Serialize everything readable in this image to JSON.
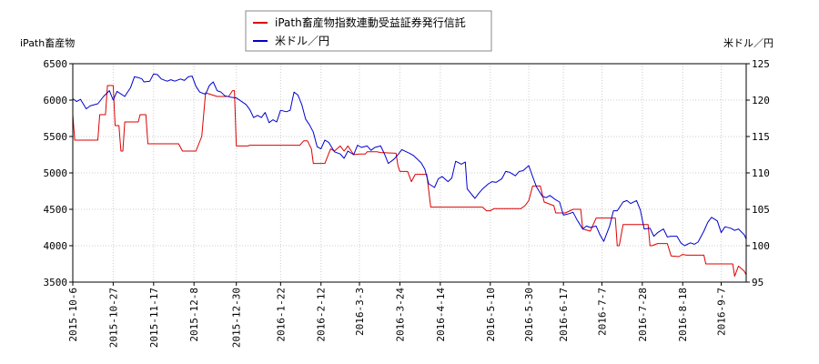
{
  "chart_data": {
    "type": "line",
    "legend": {
      "placement": "top-center",
      "items": [
        {
          "label": "iPath畜産物指数連動受益証券発行信託",
          "color": "#dd0000"
        },
        {
          "label": "米ドル／円",
          "color": "#0000cc"
        }
      ]
    },
    "left_axis_title": "iPath畜産物",
    "right_axis_title": "米ドル／円",
    "left_ylim": [
      3500,
      6500
    ],
    "left_ticks": [
      3500,
      4000,
      4500,
      5000,
      5500,
      6000,
      6500
    ],
    "right_ylim": [
      95,
      125
    ],
    "right_ticks": [
      95,
      100,
      105,
      110,
      115,
      120,
      125
    ],
    "x_range": [
      "2015-10-06",
      "2016-09-20"
    ],
    "x_ticks": [
      "2015-10-6",
      "2015-10-27",
      "2015-11-17",
      "2015-12-8",
      "2015-12-30",
      "2016-1-22",
      "2016-2-12",
      "2016-3-3",
      "2016-3-24",
      "2016-4-14",
      "2016-5-10",
      "2016-5-30",
      "2016-6-17",
      "2016-7-7",
      "2016-7-28",
      "2016-8-18",
      "2016-9-7"
    ],
    "grid": true,
    "series": [
      {
        "name": "iPath畜産物指数連動受益証券発行信託",
        "axis": "left",
        "color": "#dd0000",
        "points": [
          [
            "2015-10-06",
            5800
          ],
          [
            "2015-10-07",
            5450
          ],
          [
            "2015-10-19",
            5450
          ],
          [
            "2015-10-20",
            5800
          ],
          [
            "2015-10-23",
            5800
          ],
          [
            "2015-10-24",
            6200
          ],
          [
            "2015-10-27",
            6200
          ],
          [
            "2015-10-28",
            5650
          ],
          [
            "2015-10-30",
            5650
          ],
          [
            "2015-10-31",
            5300
          ],
          [
            "2015-11-01",
            5300
          ],
          [
            "2015-11-02",
            5700
          ],
          [
            "2015-11-09",
            5700
          ],
          [
            "2015-11-10",
            5800
          ],
          [
            "2015-11-13",
            5800
          ],
          [
            "2015-11-14",
            5400
          ],
          [
            "2015-11-30",
            5400
          ],
          [
            "2015-12-02",
            5300
          ],
          [
            "2015-12-09",
            5300
          ],
          [
            "2015-12-12",
            5500
          ],
          [
            "2015-12-14",
            6100
          ],
          [
            "2015-12-20",
            6050
          ],
          [
            "2015-12-26",
            6050
          ],
          [
            "2015-12-28",
            6130
          ],
          [
            "2015-12-29",
            6130
          ],
          [
            "2015-12-30",
            5370
          ],
          [
            "2016-01-05",
            5370
          ],
          [
            "2016-01-06",
            5380
          ],
          [
            "2016-02-01",
            5380
          ],
          [
            "2016-02-03",
            5440
          ],
          [
            "2016-02-05",
            5440
          ],
          [
            "2016-02-07",
            5330
          ],
          [
            "2016-02-08",
            5130
          ],
          [
            "2016-02-14",
            5130
          ],
          [
            "2016-02-17",
            5330
          ],
          [
            "2016-02-19",
            5300
          ],
          [
            "2016-02-22",
            5370
          ],
          [
            "2016-02-24",
            5300
          ],
          [
            "2016-02-26",
            5370
          ],
          [
            "2016-02-29",
            5250
          ],
          [
            "2016-03-03",
            5260
          ],
          [
            "2016-03-06",
            5260
          ],
          [
            "2016-03-07",
            5290
          ],
          [
            "2016-03-12",
            5290
          ],
          [
            "2016-03-14",
            5280
          ],
          [
            "2016-03-22",
            5270
          ],
          [
            "2016-03-23",
            5100
          ],
          [
            "2016-03-24",
            5020
          ],
          [
            "2016-03-28",
            5020
          ],
          [
            "2016-03-30",
            4880
          ],
          [
            "2016-04-01",
            4980
          ],
          [
            "2016-04-07",
            4980
          ],
          [
            "2016-04-09",
            4530
          ],
          [
            "2016-05-06",
            4530
          ],
          [
            "2016-05-08",
            4480
          ],
          [
            "2016-05-10",
            4480
          ],
          [
            "2016-05-12",
            4510
          ],
          [
            "2016-05-26",
            4510
          ],
          [
            "2016-05-28",
            4550
          ],
          [
            "2016-05-30",
            4620
          ],
          [
            "2016-06-01",
            4820
          ],
          [
            "2016-06-05",
            4820
          ],
          [
            "2016-06-07",
            4600
          ],
          [
            "2016-06-12",
            4550
          ],
          [
            "2016-06-13",
            4450
          ],
          [
            "2016-06-18",
            4450
          ],
          [
            "2016-06-22",
            4500
          ],
          [
            "2016-06-26",
            4500
          ],
          [
            "2016-06-27",
            4230
          ],
          [
            "2016-07-01",
            4200
          ],
          [
            "2016-07-04",
            4380
          ],
          [
            "2016-07-14",
            4380
          ],
          [
            "2016-07-15",
            4000
          ],
          [
            "2016-07-16",
            4000
          ],
          [
            "2016-07-18",
            4290
          ],
          [
            "2016-07-31",
            4290
          ],
          [
            "2016-08-01",
            4000
          ],
          [
            "2016-08-02",
            4000
          ],
          [
            "2016-08-05",
            4030
          ],
          [
            "2016-08-10",
            4030
          ],
          [
            "2016-08-12",
            3860
          ],
          [
            "2016-08-16",
            3850
          ],
          [
            "2016-08-18",
            3880
          ],
          [
            "2016-08-20",
            3870
          ],
          [
            "2016-08-29",
            3870
          ],
          [
            "2016-08-30",
            3750
          ],
          [
            "2016-09-13",
            3750
          ],
          [
            "2016-09-14",
            3580
          ],
          [
            "2016-09-16",
            3720
          ],
          [
            "2016-09-19",
            3650
          ],
          [
            "2016-09-20",
            3600
          ]
        ]
      },
      {
        "name": "米ドル／円",
        "axis": "right",
        "color": "#0000cc",
        "points": [
          [
            "2015-10-06",
            120.2
          ],
          [
            "2015-10-08",
            119.8
          ],
          [
            "2015-10-10",
            120.1
          ],
          [
            "2015-10-13",
            118.8
          ],
          [
            "2015-10-15",
            119.2
          ],
          [
            "2015-10-19",
            119.5
          ],
          [
            "2015-10-22",
            120.5
          ],
          [
            "2015-10-25",
            121.3
          ],
          [
            "2015-10-27",
            120.0
          ],
          [
            "2015-10-29",
            121.2
          ],
          [
            "2015-11-02",
            120.5
          ],
          [
            "2015-11-05",
            121.7
          ],
          [
            "2015-11-07",
            123.2
          ],
          [
            "2015-11-09",
            123.1
          ],
          [
            "2015-11-11",
            122.9
          ],
          [
            "2015-11-12",
            122.5
          ],
          [
            "2015-11-15",
            122.6
          ],
          [
            "2015-11-17",
            123.6
          ],
          [
            "2015-11-19",
            123.5
          ],
          [
            "2015-11-21",
            122.9
          ],
          [
            "2015-11-24",
            122.6
          ],
          [
            "2015-11-26",
            122.8
          ],
          [
            "2015-11-28",
            122.6
          ],
          [
            "2015-12-01",
            122.9
          ],
          [
            "2015-12-03",
            122.7
          ],
          [
            "2015-12-05",
            123.2
          ],
          [
            "2015-12-07",
            123.3
          ],
          [
            "2015-12-09",
            121.9
          ],
          [
            "2015-12-11",
            121.1
          ],
          [
            "2015-12-14",
            120.8
          ],
          [
            "2015-12-16",
            122.0
          ],
          [
            "2015-12-18",
            122.5
          ],
          [
            "2015-12-20",
            121.3
          ],
          [
            "2015-12-22",
            121.1
          ],
          [
            "2015-12-24",
            120.6
          ],
          [
            "2015-12-27",
            120.4
          ],
          [
            "2015-12-30",
            120.3
          ],
          [
            "2016-01-04",
            119.4
          ],
          [
            "2016-01-06",
            118.7
          ],
          [
            "2016-01-08",
            117.6
          ],
          [
            "2016-01-10",
            117.9
          ],
          [
            "2016-01-12",
            117.6
          ],
          [
            "2016-01-14",
            118.3
          ],
          [
            "2016-01-16",
            116.9
          ],
          [
            "2016-01-18",
            117.3
          ],
          [
            "2016-01-20",
            117.0
          ],
          [
            "2016-01-22",
            118.6
          ],
          [
            "2016-01-25",
            118.4
          ],
          [
            "2016-01-27",
            118.6
          ],
          [
            "2016-01-29",
            121.1
          ],
          [
            "2016-01-31",
            120.7
          ],
          [
            "2016-02-02",
            119.4
          ],
          [
            "2016-02-04",
            117.4
          ],
          [
            "2016-02-06",
            116.6
          ],
          [
            "2016-02-08",
            115.6
          ],
          [
            "2016-02-10",
            113.6
          ],
          [
            "2016-02-12",
            113.3
          ],
          [
            "2016-02-14",
            114.5
          ],
          [
            "2016-02-16",
            114.2
          ],
          [
            "2016-02-19",
            112.9
          ],
          [
            "2016-02-22",
            112.6
          ],
          [
            "2016-02-24",
            112.0
          ],
          [
            "2016-02-26",
            113.0
          ],
          [
            "2016-02-29",
            112.5
          ],
          [
            "2016-03-02",
            113.8
          ],
          [
            "2016-03-04",
            113.5
          ],
          [
            "2016-03-07",
            113.7
          ],
          [
            "2016-03-09",
            113.1
          ],
          [
            "2016-03-11",
            113.5
          ],
          [
            "2016-03-14",
            113.7
          ],
          [
            "2016-03-16",
            112.6
          ],
          [
            "2016-03-18",
            111.3
          ],
          [
            "2016-03-21",
            111.9
          ],
          [
            "2016-03-23",
            112.5
          ],
          [
            "2016-03-25",
            113.2
          ],
          [
            "2016-03-29",
            112.7
          ],
          [
            "2016-03-31",
            112.4
          ],
          [
            "2016-04-04",
            111.4
          ],
          [
            "2016-04-06",
            110.5
          ],
          [
            "2016-04-08",
            108.5
          ],
          [
            "2016-04-11",
            108.0
          ],
          [
            "2016-04-13",
            109.2
          ],
          [
            "2016-04-15",
            109.5
          ],
          [
            "2016-04-18",
            108.8
          ],
          [
            "2016-04-20",
            109.3
          ],
          [
            "2016-04-22",
            111.6
          ],
          [
            "2016-04-25",
            111.2
          ],
          [
            "2016-04-27",
            111.5
          ],
          [
            "2016-04-28",
            107.8
          ],
          [
            "2016-05-02",
            106.5
          ],
          [
            "2016-05-04",
            107.2
          ],
          [
            "2016-05-06",
            107.8
          ],
          [
            "2016-05-09",
            108.5
          ],
          [
            "2016-05-11",
            108.8
          ],
          [
            "2016-05-13",
            108.7
          ],
          [
            "2016-05-16",
            109.2
          ],
          [
            "2016-05-18",
            110.2
          ],
          [
            "2016-05-20",
            110.1
          ],
          [
            "2016-05-23",
            109.6
          ],
          [
            "2016-05-25",
            110.2
          ],
          [
            "2016-05-27",
            110.3
          ],
          [
            "2016-05-30",
            111.0
          ],
          [
            "2016-06-01",
            109.5
          ],
          [
            "2016-06-03",
            108.1
          ],
          [
            "2016-06-06",
            106.8
          ],
          [
            "2016-06-08",
            106.6
          ],
          [
            "2016-06-10",
            106.9
          ],
          [
            "2016-06-13",
            106.3
          ],
          [
            "2016-06-15",
            106.0
          ],
          [
            "2016-06-17",
            104.2
          ],
          [
            "2016-06-20",
            104.4
          ],
          [
            "2016-06-22",
            104.6
          ],
          [
            "2016-06-24",
            103.6
          ],
          [
            "2016-06-27",
            102.3
          ],
          [
            "2016-06-29",
            102.7
          ],
          [
            "2016-07-01",
            102.5
          ],
          [
            "2016-07-04",
            102.7
          ],
          [
            "2016-07-06",
            101.5
          ],
          [
            "2016-07-08",
            100.6
          ],
          [
            "2016-07-11",
            102.7
          ],
          [
            "2016-07-13",
            104.8
          ],
          [
            "2016-07-15",
            104.8
          ],
          [
            "2016-07-18",
            106.0
          ],
          [
            "2016-07-20",
            106.2
          ],
          [
            "2016-07-22",
            105.8
          ],
          [
            "2016-07-25",
            106.2
          ],
          [
            "2016-07-27",
            104.9
          ],
          [
            "2016-07-29",
            102.3
          ],
          [
            "2016-08-01",
            102.4
          ],
          [
            "2016-08-03",
            101.3
          ],
          [
            "2016-08-05",
            101.8
          ],
          [
            "2016-08-08",
            102.3
          ],
          [
            "2016-08-10",
            101.2
          ],
          [
            "2016-08-12",
            101.3
          ],
          [
            "2016-08-15",
            101.3
          ],
          [
            "2016-08-17",
            100.4
          ],
          [
            "2016-08-19",
            100.0
          ],
          [
            "2016-08-22",
            100.4
          ],
          [
            "2016-08-24",
            100.2
          ],
          [
            "2016-08-26",
            100.5
          ],
          [
            "2016-08-29",
            102.0
          ],
          [
            "2016-08-31",
            103.2
          ],
          [
            "2016-09-02",
            103.9
          ],
          [
            "2016-09-05",
            103.4
          ],
          [
            "2016-09-07",
            101.8
          ],
          [
            "2016-09-09",
            102.6
          ],
          [
            "2016-09-12",
            102.4
          ],
          [
            "2016-09-14",
            102.1
          ],
          [
            "2016-09-16",
            102.3
          ],
          [
            "2016-09-19",
            101.5
          ],
          [
            "2016-09-20",
            100.9
          ]
        ]
      }
    ]
  }
}
